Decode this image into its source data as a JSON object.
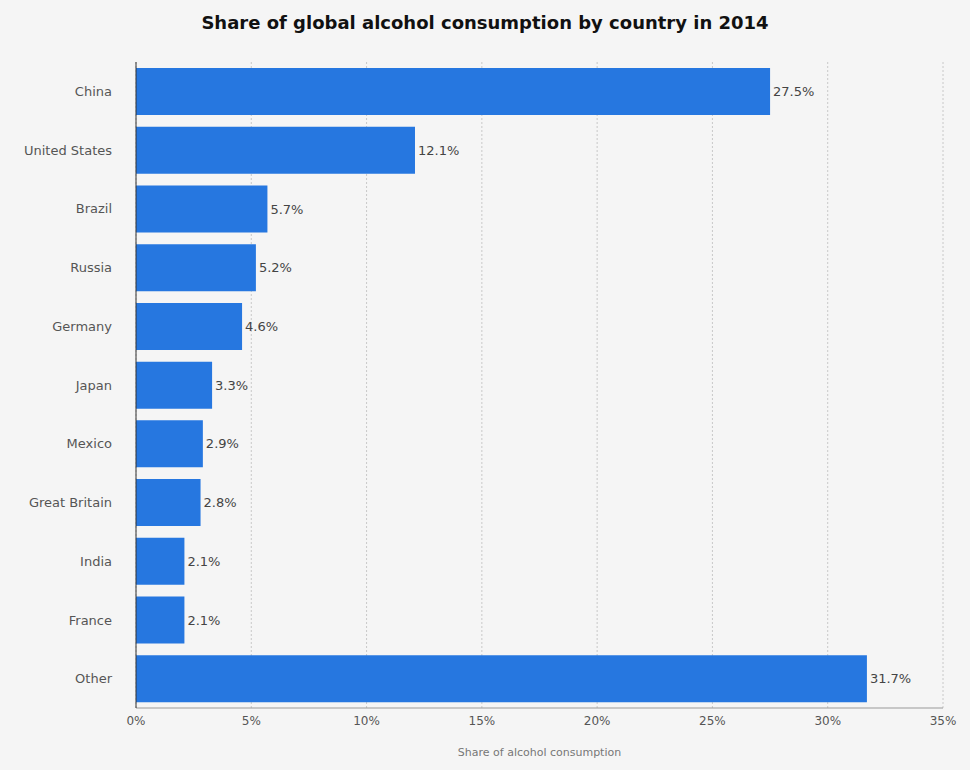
{
  "chart_data": {
    "type": "bar",
    "orientation": "horizontal",
    "title": "Share of global alcohol consumption by country in 2014",
    "x_label": "Share of alcohol consumption",
    "categories": [
      "China",
      "United States",
      "Brazil",
      "Russia",
      "Germany",
      "Japan",
      "Mexico",
      "Great Britain",
      "India",
      "France",
      "Other"
    ],
    "values": [
      27.5,
      12.1,
      5.7,
      5.2,
      4.6,
      3.3,
      2.9,
      2.8,
      2.1,
      2.1,
      31.7
    ],
    "value_labels": [
      "27.5%",
      "12.1%",
      "5.7%",
      "5.2%",
      "4.6%",
      "3.3%",
      "2.9%",
      "2.8%",
      "2.1%",
      "2.1%",
      "31.7%"
    ],
    "color": "#2677e0",
    "xlim": [
      0,
      35
    ],
    "xticks": [
      {
        "value": 0,
        "label": "0%"
      },
      {
        "value": 5,
        "label": "5%"
      },
      {
        "value": 10,
        "label": "10%"
      },
      {
        "value": 15,
        "label": "15%"
      },
      {
        "value": 20,
        "label": "20%"
      },
      {
        "value": 25,
        "label": "25%"
      },
      {
        "value": 30,
        "label": "30%"
      },
      {
        "value": 35,
        "label": "35%"
      }
    ],
    "grid": true,
    "data_labels": true
  }
}
